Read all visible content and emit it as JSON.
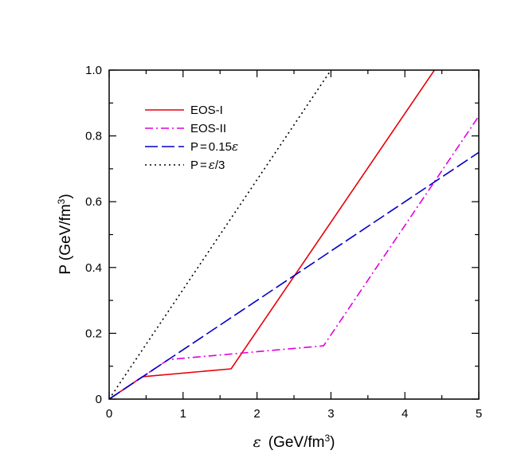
{
  "chart_data": {
    "type": "line",
    "xlabel": {
      "sym": "ε",
      "text": "(GeV/fm",
      "sup": "3",
      "close": ")"
    },
    "ylabel": {
      "text": "P (GeV/fm",
      "sup": "3",
      "close": ")"
    },
    "xlim": [
      0,
      5
    ],
    "ylim": [
      0,
      1.0
    ],
    "xticks": [
      0,
      1,
      2,
      3,
      4,
      5
    ],
    "xtick_labels": [
      "0",
      "1",
      "2",
      "3",
      "4",
      "5"
    ],
    "yticks": [
      0,
      0.2,
      0.4,
      0.6,
      0.8,
      1.0
    ],
    "ytick_labels": [
      "0",
      "0.2",
      "0.4",
      "0.6",
      "0.8",
      "1.0"
    ],
    "grid": false,
    "legend_position": "top-left",
    "series": [
      {
        "name": "EOS-I",
        "legend_parts": [
          "EOS-I"
        ],
        "color": "#e8000b",
        "dash": "solid",
        "x": [
          0,
          0.45,
          1.65,
          4.4
        ],
        "y": [
          0,
          0.068,
          0.092,
          1.0
        ]
      },
      {
        "name": "EOS-II",
        "legend_parts": [
          "EOS-II"
        ],
        "color": "#e000e0",
        "dash": "dashdot",
        "x": [
          0,
          0.8,
          2.9,
          5.0
        ],
        "y": [
          0,
          0.12,
          0.162,
          0.86
        ]
      },
      {
        "name": "P = 0.15ε",
        "legend_parts": [
          "P",
          "=",
          "0.15",
          "ε"
        ],
        "color": "#0000c8",
        "dash": "dashed",
        "x": [
          0,
          5.0
        ],
        "y": [
          0,
          0.75
        ]
      },
      {
        "name": "P = ε/3",
        "legend_parts": [
          "P",
          "=",
          "ε",
          "/3"
        ],
        "color": "#000000",
        "dash": "dotted",
        "x": [
          0,
          3.0
        ],
        "y": [
          0,
          1.0
        ]
      }
    ]
  }
}
